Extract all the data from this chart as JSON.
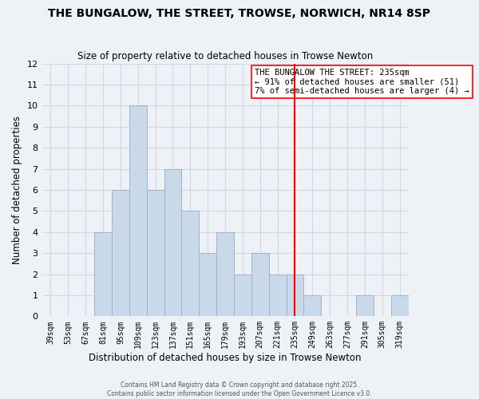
{
  "title": "THE BUNGALOW, THE STREET, TROWSE, NORWICH, NR14 8SP",
  "subtitle": "Size of property relative to detached houses in Trowse Newton",
  "xlabel": "Distribution of detached houses by size in Trowse Newton",
  "ylabel": "Number of detached properties",
  "bar_color": "#c9d9ea",
  "bar_edgecolor": "#9ab4cc",
  "background_color": "#eef2f7",
  "grid_color": "#d0d8e4",
  "bin_labels": [
    "39sqm",
    "53sqm",
    "67sqm",
    "81sqm",
    "95sqm",
    "109sqm",
    "123sqm",
    "137sqm",
    "151sqm",
    "165sqm",
    "179sqm",
    "193sqm",
    "207sqm",
    "221sqm",
    "235sqm",
    "249sqm",
    "263sqm",
    "277sqm",
    "291sqm",
    "305sqm",
    "319sqm"
  ],
  "counts": [
    0,
    0,
    0,
    4,
    6,
    10,
    6,
    7,
    5,
    3,
    4,
    2,
    3,
    2,
    2,
    1,
    0,
    0,
    1,
    0,
    1
  ],
  "ylim": [
    0,
    12
  ],
  "yticks": [
    0,
    1,
    2,
    3,
    4,
    5,
    6,
    7,
    8,
    9,
    10,
    11,
    12
  ],
  "vline_idx": 14,
  "vline_color": "red",
  "annotation_title": "THE BUNGALOW THE STREET: 235sqm",
  "annotation_line1": "← 91% of detached houses are smaller (51)",
  "annotation_line2": "7% of semi-detached houses are larger (4) →",
  "footer1": "Contains HM Land Registry data © Crown copyright and database right 2025.",
  "footer2": "Contains public sector information licensed under the Open Government Licence v3.0."
}
